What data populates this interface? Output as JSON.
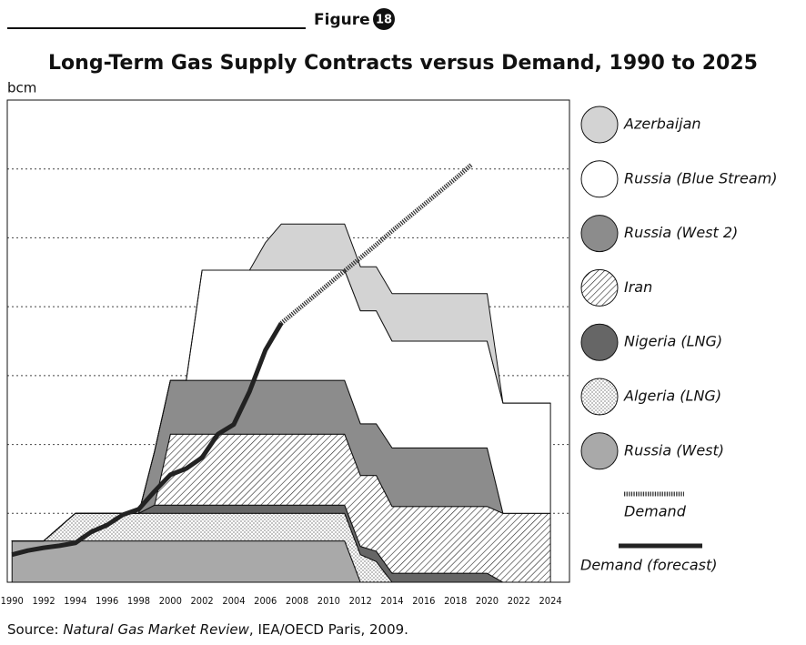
{
  "figure_label": "Figure",
  "figure_number": "18",
  "source": {
    "prefix": "Source: ",
    "italic": "Natural Gas Market Review",
    "suffix": ", IEA/OECD Paris, 2009."
  },
  "chart_data": {
    "type": "area",
    "title": "Long-Term Gas Supply Contracts versus Demand, 1990 to 2025",
    "y_label": "bcm",
    "x": [
      1990,
      1991,
      1992,
      1993,
      1994,
      1995,
      1996,
      1997,
      1998,
      1999,
      2000,
      2001,
      2002,
      2003,
      2004,
      2005,
      2006,
      2007,
      2008,
      2009,
      2010,
      2011,
      2012,
      2013,
      2014,
      2015,
      2016,
      2017,
      2018,
      2019,
      2020,
      2021,
      2022,
      2023,
      2024
    ],
    "xlim": [
      1989.7,
      2025.2
    ],
    "xticks": [
      1990,
      1992,
      1994,
      1996,
      1998,
      2000,
      2002,
      2004,
      2006,
      2008,
      2010,
      2012,
      2014,
      2016,
      2018,
      2020,
      2022,
      2024
    ],
    "ylim": [
      0,
      70
    ],
    "yticks": [
      10,
      20,
      30,
      40,
      50,
      60
    ],
    "grid": true,
    "stacked": true,
    "series": [
      {
        "name": "Russia (West)",
        "color": "#a9a9a9",
        "values": [
          6,
          6,
          6,
          6,
          6,
          6,
          6,
          6,
          6,
          6,
          6,
          6,
          6,
          6,
          6,
          6,
          6,
          6,
          6,
          6,
          6,
          6,
          0,
          0,
          0,
          0,
          0,
          0,
          0,
          0,
          0,
          0,
          0,
          0,
          0
        ]
      },
      {
        "name": "Algeria (LNG)",
        "color": "#ffffff",
        "pattern": "dots",
        "values": [
          0,
          0,
          0,
          2,
          4,
          4,
          4,
          4,
          4,
          4,
          4,
          4,
          4,
          4,
          4,
          4,
          4,
          4,
          4,
          4,
          4,
          4,
          4,
          3,
          0,
          0,
          0,
          0,
          0,
          0,
          0,
          0,
          0,
          0,
          0
        ]
      },
      {
        "name": "Nigeria (LNG)",
        "color": "#666666",
        "values": [
          0,
          0,
          0,
          0,
          0,
          0,
          0,
          0,
          0,
          1.2,
          1.2,
          1.2,
          1.2,
          1.2,
          1.2,
          1.2,
          1.2,
          1.2,
          1.2,
          1.2,
          1.2,
          1.2,
          1.2,
          1.5,
          1.3,
          1.3,
          1.3,
          1.3,
          1.3,
          1.3,
          1.3,
          0,
          0,
          0,
          0
        ]
      },
      {
        "name": "Iran",
        "color": "#ffffff",
        "pattern": "hatch",
        "values": [
          0,
          0,
          0,
          0,
          0,
          0,
          0,
          0,
          0,
          0,
          10.3,
          10.3,
          10.3,
          10.3,
          10.3,
          10.3,
          10.3,
          10.3,
          10.3,
          10.3,
          10.3,
          10.3,
          10.3,
          11,
          9.7,
          9.7,
          9.7,
          9.7,
          9.7,
          9.7,
          9.7,
          10,
          10,
          10,
          10
        ]
      },
      {
        "name": "Russia (West 2)",
        "color": "#8c8c8c",
        "values": [
          0,
          0,
          0,
          0,
          0,
          0,
          0,
          0,
          0,
          7.8,
          7.8,
          7.8,
          7.8,
          7.8,
          7.8,
          7.8,
          7.8,
          7.8,
          7.8,
          7.8,
          7.8,
          7.8,
          7.5,
          7.5,
          8.5,
          8.5,
          8.5,
          8.5,
          8.5,
          8.5,
          8.5,
          0,
          0,
          0,
          0
        ]
      },
      {
        "name": "Russia (Blue Stream)",
        "color": "#ffffff",
        "values": [
          0,
          0,
          0,
          0,
          0,
          0,
          0,
          0,
          0,
          0,
          0,
          0,
          16,
          16,
          16,
          16,
          16,
          16,
          16,
          16,
          16,
          16,
          16.4,
          16.4,
          15.5,
          15.5,
          15.5,
          15.5,
          15.5,
          15.5,
          15.5,
          16,
          16,
          16,
          16
        ]
      },
      {
        "name": "Azerbaijan",
        "color": "#d3d3d3",
        "values": [
          0,
          0,
          0,
          0,
          0,
          0,
          0,
          0,
          0,
          0,
          0,
          0,
          0,
          0,
          0,
          0,
          4,
          6.7,
          6.7,
          6.7,
          6.7,
          6.7,
          6.4,
          6.4,
          6.9,
          6.9,
          6.9,
          6.9,
          6.9,
          6.9,
          6.9,
          0,
          0,
          0,
          0
        ]
      }
    ],
    "lines": [
      {
        "name": "Demand",
        "color": "#333333",
        "style": "dotted",
        "x": [
          2007,
          2008,
          2009,
          2010,
          2011,
          2012,
          2013,
          2014,
          2015,
          2016,
          2017,
          2018,
          2019
        ],
        "values": [
          37.6,
          39.5,
          41.4,
          43.3,
          45.2,
          47.1,
          49,
          51,
          52.9,
          54.8,
          56.7,
          58.6,
          60.6
        ]
      },
      {
        "name": "Demand (forecast)",
        "color": "#222222",
        "style": "solid",
        "x": [
          1990,
          1991,
          1992,
          1993,
          1994,
          1995,
          1996,
          1997,
          1998,
          1999,
          2000,
          2001,
          2002,
          2003,
          2004,
          2005,
          2006,
          2007
        ],
        "values": [
          4,
          4.6,
          5,
          5.3,
          5.7,
          7.3,
          8.3,
          9.8,
          10.6,
          13.2,
          15.6,
          16.5,
          18.1,
          21.5,
          22.9,
          27.7,
          33.7,
          37.6
        ]
      }
    ]
  }
}
